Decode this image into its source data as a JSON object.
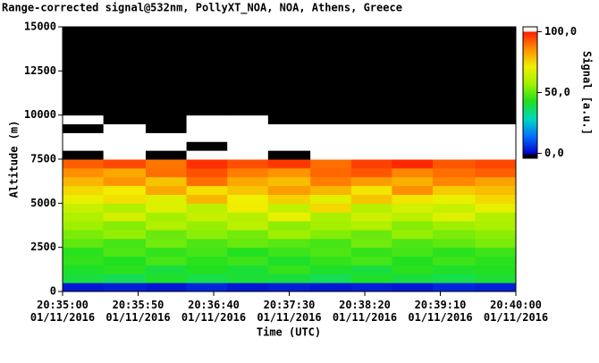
{
  "chart_data": {
    "type": "heatmap",
    "title": "Range-corrected signal@532nm, PollyXT_NOA, NOA, Athens, Greece",
    "xlabel": "Time (UTC)",
    "ylabel": "Altitude (m)",
    "colorbar_label": "Signal [a.u.]",
    "x": [
      "20:35:00",
      "20:35:27",
      "20:35:55",
      "20:36:22",
      "20:36:49",
      "20:37:16",
      "20:37:44",
      "20:38:11",
      "20:38:38",
      "20:39:05",
      "20:39:33"
    ],
    "xlim": [
      "20:35:00",
      "20:40:00"
    ],
    "xticks": [
      {
        "value": "20:35:00",
        "label": "20:35:00\n01/11/2016"
      },
      {
        "value": "20:35:50",
        "label": "20:35:50\n01/11/2016"
      },
      {
        "value": "20:36:40",
        "label": "20:36:40\n01/11/2016"
      },
      {
        "value": "20:37:30",
        "label": "20:37:30\n01/11/2016"
      },
      {
        "value": "20:38:20",
        "label": "20:38:20\n01/11/2016"
      },
      {
        "value": "20:39:10",
        "label": "20:39:10\n01/11/2016"
      },
      {
        "value": "20:40:00",
        "label": "20:40:00\n01/11/2016"
      }
    ],
    "y": [
      0,
      500,
      1000,
      1500,
      2000,
      2500,
      3000,
      3500,
      4000,
      4500,
      5000,
      5500,
      6000,
      6500,
      7000,
      7500,
      8000,
      8500,
      9000,
      9500,
      10000,
      10500,
      11000,
      11500,
      12000,
      12500,
      13000,
      13500,
      14000,
      14500
    ],
    "ylim": [
      0,
      15000
    ],
    "yticks": [
      0,
      2500,
      5000,
      7500,
      10000,
      12500,
      15000
    ],
    "zlim": [
      -4,
      104
    ],
    "zticks": [
      {
        "value": 0,
        "label": "0,0"
      },
      {
        "value": 50,
        "label": "50,0"
      },
      {
        "value": 100,
        "label": "100,0"
      }
    ],
    "colormap": [
      "#0000c8",
      "#0070ff",
      "#00d8c0",
      "#20e020",
      "#a0f000",
      "#f0f000",
      "#ff9000",
      "#ff2000"
    ],
    "under_color": "#000000",
    "over_color": "#ffffff",
    "z": [
      [
        3,
        4,
        3,
        5,
        3,
        4,
        3,
        4,
        3,
        5,
        4
      ],
      [
        40,
        38,
        42,
        39,
        41,
        40,
        38,
        42,
        40,
        39,
        41
      ],
      [
        42,
        44,
        40,
        43,
        41,
        45,
        42,
        40,
        44,
        42,
        43
      ],
      [
        45,
        43,
        47,
        44,
        46,
        42,
        45,
        47,
        43,
        46,
        44
      ],
      [
        44,
        48,
        45,
        47,
        43,
        46,
        48,
        45,
        47,
        44,
        46
      ],
      [
        50,
        47,
        52,
        48,
        51,
        49,
        47,
        52,
        48,
        50,
        53
      ],
      [
        53,
        56,
        51,
        55,
        52,
        57,
        54,
        51,
        56,
        53,
        55
      ],
      [
        57,
        54,
        60,
        56,
        62,
        55,
        58,
        60,
        54,
        57,
        59
      ],
      [
        60,
        66,
        58,
        64,
        61,
        70,
        59,
        65,
        62,
        68,
        60
      ],
      [
        64,
        60,
        68,
        62,
        72,
        63,
        75,
        61,
        66,
        64,
        70
      ],
      [
        70,
        74,
        68,
        80,
        71,
        76,
        69,
        78,
        73,
        70,
        75
      ],
      [
        75,
        72,
        82,
        74,
        78,
        84,
        80,
        73,
        86,
        77,
        79
      ],
      [
        80,
        85,
        78,
        90,
        82,
        79,
        88,
        84,
        81,
        87,
        83
      ],
      [
        86,
        82,
        90,
        94,
        88,
        85,
        91,
        93,
        87,
        90,
        92
      ],
      [
        92,
        95,
        89,
        98,
        94,
        97,
        90,
        96,
        99,
        93,
        95
      ],
      [
        -5,
        105,
        -5,
        105,
        105,
        -5,
        105,
        105,
        105,
        105,
        105
      ],
      [
        105,
        105,
        105,
        -5,
        105,
        105,
        105,
        105,
        105,
        105,
        105
      ],
      [
        105,
        105,
        105,
        105,
        105,
        105,
        105,
        105,
        105,
        105,
        105
      ],
      [
        -5,
        105,
        -5,
        105,
        105,
        105,
        105,
        105,
        105,
        105,
        105
      ],
      [
        105,
        -5,
        -5,
        105,
        105,
        -5,
        -5,
        -5,
        -5,
        -5,
        -5
      ],
      [
        -5,
        -5,
        -5,
        -5,
        -5,
        -5,
        -5,
        -5,
        -5,
        -5,
        -5
      ],
      [
        -5,
        -5,
        -5,
        -5,
        -5,
        -5,
        -5,
        -5,
        -5,
        -5,
        -5
      ],
      [
        -5,
        -5,
        -5,
        -5,
        -5,
        -5,
        -5,
        -5,
        -5,
        -5,
        -5
      ],
      [
        -5,
        -5,
        -5,
        -5,
        -5,
        -5,
        -5,
        -5,
        -5,
        -5,
        -5
      ],
      [
        -5,
        -5,
        -5,
        -5,
        -5,
        -5,
        -5,
        -5,
        -5,
        -5,
        -5
      ],
      [
        -5,
        -5,
        -5,
        -5,
        -5,
        -5,
        -5,
        -5,
        -5,
        -5,
        -5
      ],
      [
        -5,
        -5,
        -5,
        -5,
        -5,
        -5,
        -5,
        -5,
        -5,
        -5,
        -5
      ],
      [
        -5,
        -5,
        -5,
        -5,
        -5,
        -5,
        -5,
        -5,
        -5,
        -5,
        -5
      ],
      [
        -5,
        -5,
        -5,
        -5,
        -5,
        -5,
        -5,
        -5,
        -5,
        -5,
        -5
      ],
      [
        -5,
        -5,
        -5,
        -5,
        -5,
        -5,
        -5,
        -5,
        -5,
        -5,
        -5
      ]
    ]
  }
}
